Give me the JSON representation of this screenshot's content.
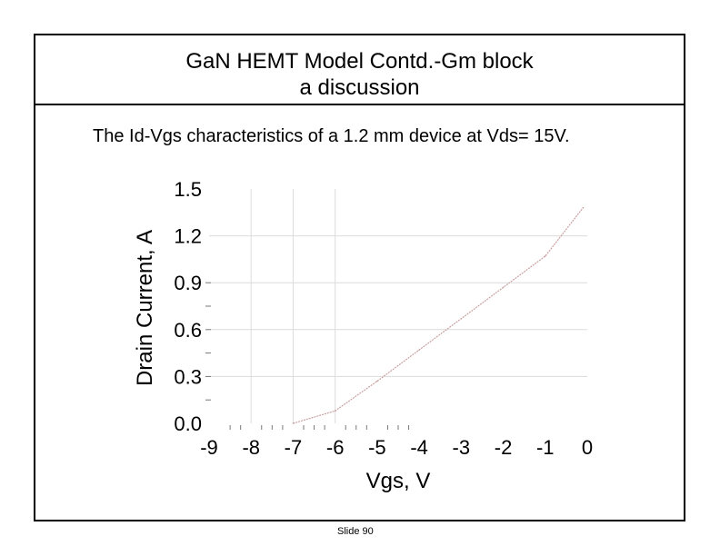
{
  "slide": {
    "title_line1": "GaN HEMT Model Contd.-Gm block",
    "title_line2": "a discussion",
    "subtitle": "The Id-Vgs characteristics of a 1.2 mm device at Vds= 15V.",
    "slide_number": "Slide 90"
  },
  "chart_data": {
    "type": "line",
    "xlabel": "Vgs, V",
    "ylabel": "Drain Current, A",
    "xlim": [
      -9,
      0
    ],
    "ylim": [
      0,
      1.5
    ],
    "x_ticks": [
      "-9",
      "-8",
      "-7",
      "-6",
      "-5",
      "-4",
      "-3",
      "-2",
      "-1",
      "0"
    ],
    "y_ticks": [
      "0.0",
      "0.3",
      "0.6",
      "0.9",
      "1.2",
      "1.5"
    ],
    "grid": true,
    "series": [
      {
        "x": [
          -7.0,
          -6.0,
          -5.0,
          -4.0,
          -3.0,
          -2.0,
          -1.0,
          -0.1
        ],
        "y": [
          0.0,
          0.08,
          0.27,
          0.47,
          0.67,
          0.87,
          1.07,
          1.38
        ],
        "color": "#c9a0a0"
      }
    ]
  }
}
